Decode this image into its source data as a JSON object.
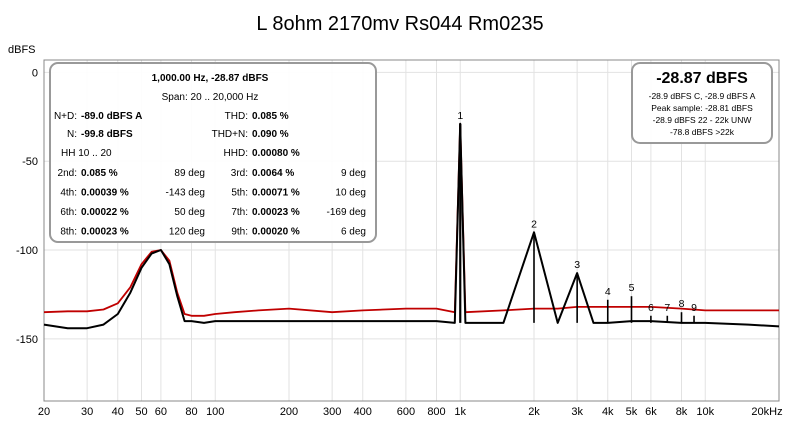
{
  "chart_data": {
    "type": "line",
    "title": "L 8ohm 2170mv Rs044 Rm0235",
    "ylabel": "dBFS",
    "xlabel": "",
    "x_scale": "log",
    "xlim": [
      20,
      20000
    ],
    "ylim": [
      -185,
      7
    ],
    "grid": true,
    "y_ticks": [
      {
        "value": 0,
        "label": "0"
      },
      {
        "value": -50,
        "label": "-50"
      },
      {
        "value": -100,
        "label": "-100"
      },
      {
        "value": -150,
        "label": "-150"
      }
    ],
    "x_ticks": [
      {
        "value": 20,
        "label": "20"
      },
      {
        "value": 30,
        "label": "30"
      },
      {
        "value": 40,
        "label": "40"
      },
      {
        "value": 50,
        "label": "50"
      },
      {
        "value": 60,
        "label": "60"
      },
      {
        "value": 80,
        "label": "80"
      },
      {
        "value": 100,
        "label": "100"
      },
      {
        "value": 200,
        "label": "200"
      },
      {
        "value": 300,
        "label": "300"
      },
      {
        "value": 400,
        "label": "400"
      },
      {
        "value": 600,
        "label": "600"
      },
      {
        "value": 800,
        "label": "800"
      },
      {
        "value": 1000,
        "label": "1k"
      },
      {
        "value": 2000,
        "label": "2k"
      },
      {
        "value": 3000,
        "label": "3k"
      },
      {
        "value": 4000,
        "label": "4k"
      },
      {
        "value": 5000,
        "label": "5k"
      },
      {
        "value": 6000,
        "label": "6k"
      },
      {
        "value": 8000,
        "label": "8k"
      },
      {
        "value": 10000,
        "label": "10k"
      },
      {
        "value": 20000,
        "label": "20kHz"
      }
    ],
    "series": [
      {
        "color": "#c00000",
        "x": [
          20,
          25,
          30,
          35,
          40,
          45,
          50,
          55,
          60,
          65,
          70,
          75,
          80,
          90,
          100,
          120,
          150,
          200,
          300,
          400,
          600,
          800,
          950,
          1000,
          1050,
          1500,
          2000,
          2500,
          3000,
          4000,
          5000,
          6000,
          8000,
          10000,
          15000,
          20000
        ],
        "y": [
          -135,
          -134.5,
          -134.5,
          -133.5,
          -130,
          -121,
          -108,
          -101,
          -100,
          -106,
          -124,
          -136,
          -137,
          -137,
          -136,
          -135,
          -134,
          -133,
          -135,
          -134,
          -133,
          -133,
          -135,
          -28.9,
          -135,
          -134,
          -133,
          -133,
          -132,
          -132,
          -132,
          -132,
          -133,
          -134,
          -134,
          -134
        ]
      },
      {
        "color": "#000000",
        "x": [
          20,
          25,
          30,
          35,
          40,
          45,
          50,
          55,
          60,
          65,
          70,
          75,
          80,
          90,
          100,
          120,
          150,
          200,
          300,
          400,
          600,
          800,
          950,
          1000,
          1050,
          1500,
          2000,
          2500,
          3000,
          3500,
          4000,
          5000,
          6000,
          8000,
          10000,
          15000,
          20000
        ],
        "y": [
          -142,
          -144,
          -144,
          -142,
          -136,
          -124,
          -110,
          -102,
          -100,
          -108,
          -126,
          -140,
          -140,
          -141,
          -140,
          -140,
          -140,
          -140,
          -140,
          -140,
          -140,
          -140,
          -141,
          -28.9,
          -141,
          -141,
          -90,
          -141,
          -113,
          -141,
          -141,
          -140,
          -140,
          -141,
          -141,
          -142,
          -143
        ]
      }
    ],
    "harmonic_markers": [
      {
        "label": "1",
        "freq": 1000,
        "level": -28.9
      },
      {
        "label": "2",
        "freq": 2000,
        "level": -90
      },
      {
        "label": "3",
        "freq": 3000,
        "level": -113
      },
      {
        "label": "4",
        "freq": 4000,
        "level": -128
      },
      {
        "label": "5",
        "freq": 5000,
        "level": -126
      },
      {
        "label": "6",
        "freq": 6000,
        "level": -137
      },
      {
        "label": "7",
        "freq": 7000,
        "level": -137
      },
      {
        "label": "8",
        "freq": 8000,
        "level": -135
      },
      {
        "label": "9",
        "freq": 9000,
        "level": -137
      }
    ],
    "info_panel": {
      "header": "1,000.00 Hz, -28.87 dBFS",
      "span": "Span: 20 .. 20,000 Hz",
      "nd_label": "N+D:",
      "nd_value": "-89.0 dBFS A",
      "n_label": "N:",
      "n_value": "-99.8 dBFS",
      "thd_label": "THD:",
      "thd_value": "0.085 %",
      "thdn_label": "THD+N:",
      "thdn_value": "0.090 %",
      "hh_label": "HH 10 .. 20",
      "hhd_label": "HHD:",
      "hhd_value": "0.00080 %",
      "rows": [
        {
          "l1": "2nd:",
          "v1": "0.085 %",
          "d1": "89 deg",
          "l2": "3rd:",
          "v2": "0.0064 %",
          "d2": "9 deg"
        },
        {
          "l1": "4th:",
          "v1": "0.00039 %",
          "d1": "-143 deg",
          "l2": "5th:",
          "v2": "0.00071 %",
          "d2": "10 deg"
        },
        {
          "l1": "6th:",
          "v1": "0.00022 %",
          "d1": "50 deg",
          "l2": "7th:",
          "v2": "0.00023 %",
          "d2": "-169 deg"
        },
        {
          "l1": "8th:",
          "v1": "0.00023 %",
          "d1": "120 deg",
          "l2": "9th:",
          "v2": "0.00020 %",
          "d2": "6 deg"
        }
      ]
    },
    "level_panel": {
      "big": "-28.87 dBFS",
      "lines": [
        "-28.9 dBFS C, -28.9 dBFS A",
        "Peak sample: -28.81 dBFS",
        "-28.9 dBFS 22 - 22k UNW",
        "-78.8 dBFS >22k"
      ]
    }
  }
}
